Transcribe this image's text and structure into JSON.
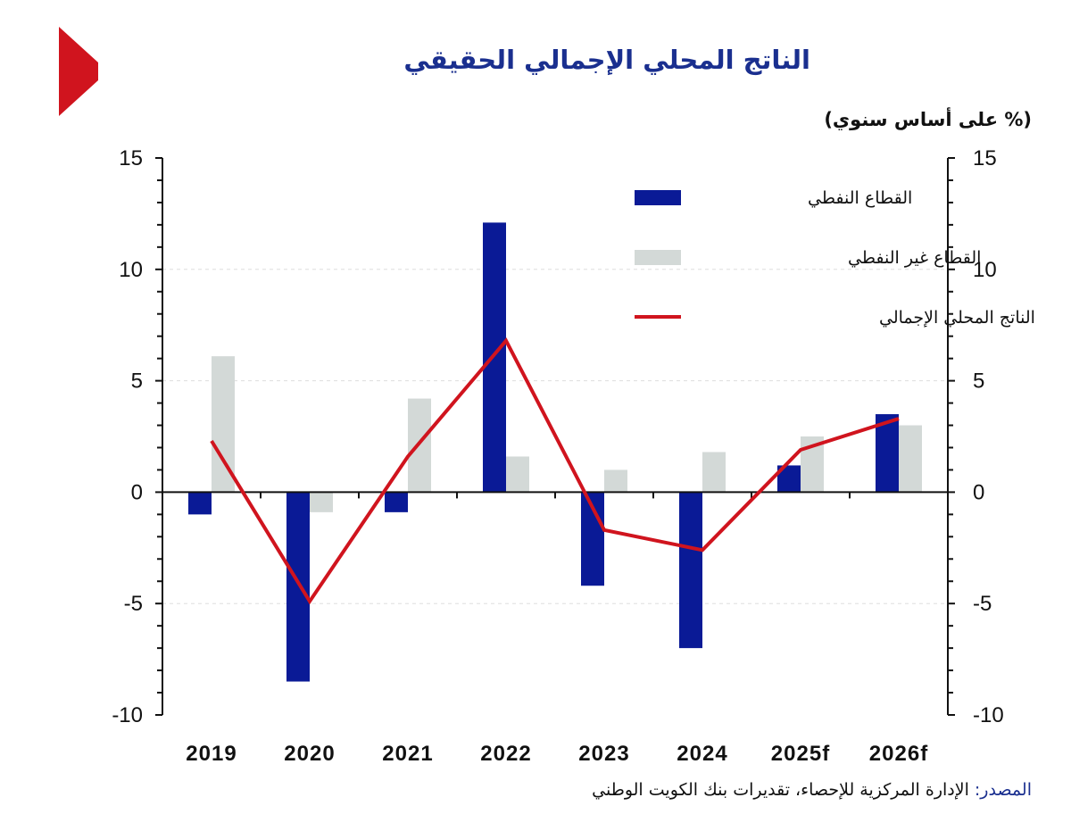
{
  "header": {
    "title": "الناتج المحلي الإجمالي الحقيقي",
    "unit": "(% على أساس سنوي)"
  },
  "source": {
    "label": "المصدر:",
    "text": "الإدارة المركزية للإحصاء، تقديرات بنك الكويت الوطني"
  },
  "colors": {
    "oil": "#0a1a96",
    "non_oil": "#d3d9d7",
    "gdp": "#d0141e",
    "brand": "#d0141e",
    "title": "#1a2f8f"
  },
  "chart_data": {
    "type": "bar",
    "title": "الناتج المحلي الإجمالي الحقيقي",
    "ylabel": "(% على أساس سنوي)",
    "categories": [
      "2019",
      "2020",
      "2021",
      "2022",
      "2023",
      "2024",
      "2025f",
      "2026f"
    ],
    "ylim": [
      -10,
      15
    ],
    "yticks": [
      "15",
      "10",
      "5",
      "0",
      "-5",
      "-10"
    ],
    "y2ticks": [
      "15",
      "10",
      "5",
      "0",
      "-5",
      "-10"
    ],
    "grid": true,
    "legend_position": "top-right",
    "series": [
      {
        "name": "القطاع النفطي",
        "type": "bar",
        "values": [
          -1.0,
          -8.5,
          -0.9,
          12.1,
          -4.2,
          -7.0,
          1.2,
          3.5
        ]
      },
      {
        "name": "القطاع غير النفطي",
        "type": "bar",
        "values": [
          6.1,
          -0.9,
          4.2,
          1.6,
          1.0,
          1.8,
          2.5,
          3.0
        ]
      },
      {
        "name": "الناتج المحلي الإجمالي",
        "type": "line",
        "values": [
          2.3,
          -4.9,
          1.6,
          6.8,
          -1.7,
          -2.6,
          1.9,
          3.3
        ]
      }
    ]
  }
}
